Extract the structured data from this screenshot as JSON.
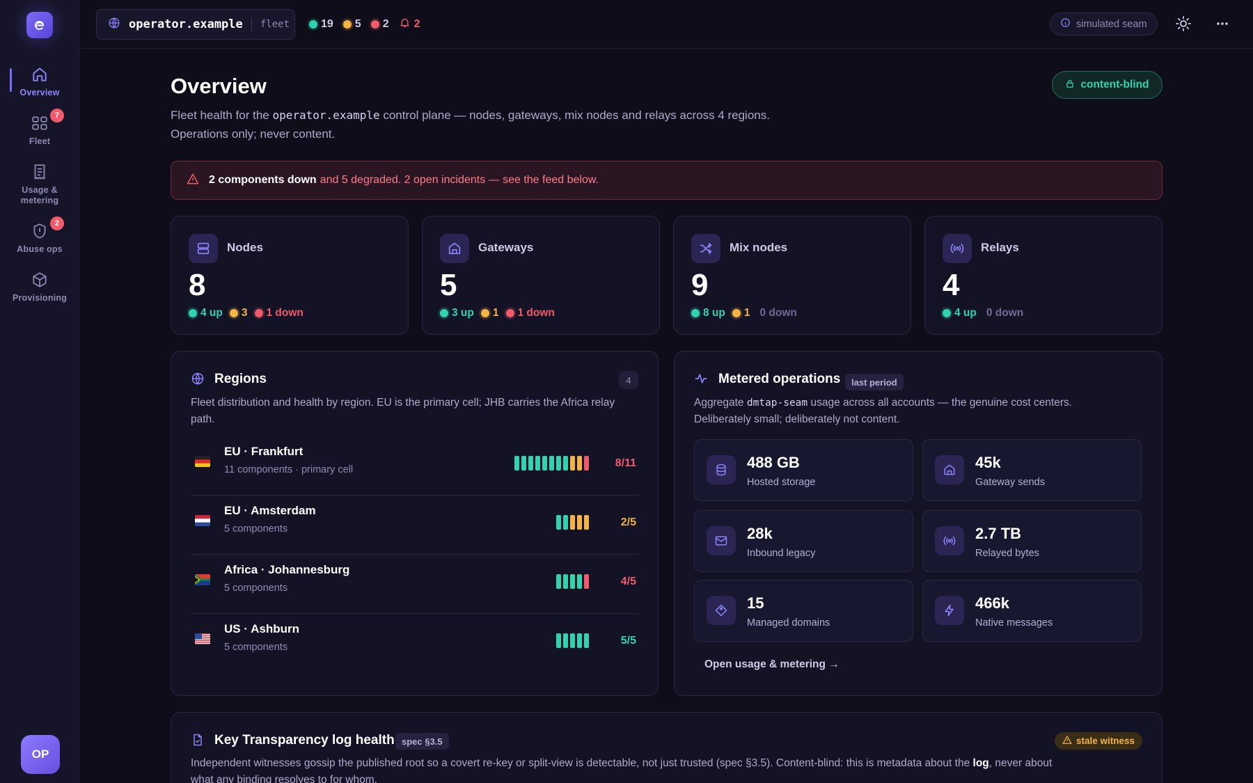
{
  "sidebar": {
    "items": [
      {
        "label": "Overview",
        "badge": ""
      },
      {
        "label": "Fleet",
        "badge": "7"
      },
      {
        "label": "Usage &",
        "label2": "metering",
        "badge": ""
      },
      {
        "label": "Abuse ops",
        "badge": "2"
      },
      {
        "label": "Provisioning",
        "badge": ""
      }
    ],
    "avatar": "OP"
  },
  "topbar": {
    "host": "operator.example",
    "host_tag": "fleet",
    "counts": {
      "up": "19",
      "degraded": "5",
      "down": "2",
      "alerts": "2"
    },
    "seam_label": "simulated seam"
  },
  "header": {
    "title": "Overview",
    "content_blind": "content-blind",
    "intro_prefix": "Fleet health for the ",
    "intro_code": "operator.example",
    "intro_suffix": " control plane — nodes, gateways, mix nodes and relays across 4 regions.",
    "intro_line2": "Operations only; never content."
  },
  "alert": {
    "bold": "2 components down",
    "rest": "and 5 degraded. 2 open incidents — see the feed below."
  },
  "stats": [
    {
      "label": "Nodes",
      "value": "8",
      "up": "4 up",
      "degraded": "3",
      "down": "1 down"
    },
    {
      "label": "Gateways",
      "value": "5",
      "up": "3 up",
      "degraded": "1",
      "down": "1 down"
    },
    {
      "label": "Mix nodes",
      "value": "9",
      "up": "8 up",
      "degraded": "1",
      "down": "0 down"
    },
    {
      "label": "Relays",
      "value": "4",
      "up": "4 up",
      "degraded": "",
      "down": "0 down"
    }
  ],
  "regions": {
    "title": "Regions",
    "count": "4",
    "desc": "Fleet distribution and health by region. EU is the primary cell; JHB carries the Africa relay path.",
    "rows": [
      {
        "name": "EU · Frankfurt",
        "sub": "11 components · primary cell",
        "ratio": "8/11",
        "up": 8,
        "degraded": 2,
        "down": 1
      },
      {
        "name": "EU · Amsterdam",
        "sub": "5 components",
        "ratio": "2/5",
        "up": 2,
        "degraded": 3,
        "down": 0
      },
      {
        "name": "Africa · Johannesburg",
        "sub": "5 components",
        "ratio": "4/5",
        "up": 4,
        "degraded": 0,
        "down": 1
      },
      {
        "name": "US · Ashburn",
        "sub": "5 components",
        "ratio": "5/5",
        "up": 5,
        "degraded": 0,
        "down": 0
      }
    ]
  },
  "metered": {
    "title": "Metered operations",
    "period": "last period",
    "desc_prefix": "Aggregate ",
    "desc_code": "dmtap-seam",
    "desc_suffix": " usage across all accounts — the genuine cost centers.",
    "desc_line2": "Deliberately small; deliberately not content.",
    "cards": [
      {
        "value": "488 GB",
        "label": "Hosted storage",
        "icon": "database-icon"
      },
      {
        "value": "45k",
        "label": "Gateway sends",
        "icon": "gateway-icon"
      },
      {
        "value": "28k",
        "label": "Inbound legacy",
        "icon": "mail-icon"
      },
      {
        "value": "2.7 TB",
        "label": "Relayed bytes",
        "icon": "broadcast-icon"
      },
      {
        "value": "15",
        "label": "Managed domains",
        "icon": "tag-icon"
      },
      {
        "value": "466k",
        "label": "Native messages",
        "icon": "bolt-icon"
      }
    ],
    "link": "Open usage & metering →"
  },
  "kt": {
    "title": "Key Transparency log health",
    "spec": "spec §3.5",
    "stale": "stale witness",
    "desc_part1": "Independent witnesses gossip the published root so a covert re-key or split-view is detectable, not just trusted (spec §3.5). Content-blind: this is metadata about the ",
    "desc_bold": "log",
    "desc_part2": ", never about",
    "desc_line2": "what any binding resolves to for whom."
  },
  "colors": {
    "accent": "#7b6cf5",
    "up": "#2fd3b0",
    "degraded": "#f3b444",
    "down": "#f05a6a",
    "background": "#0e0d19"
  }
}
